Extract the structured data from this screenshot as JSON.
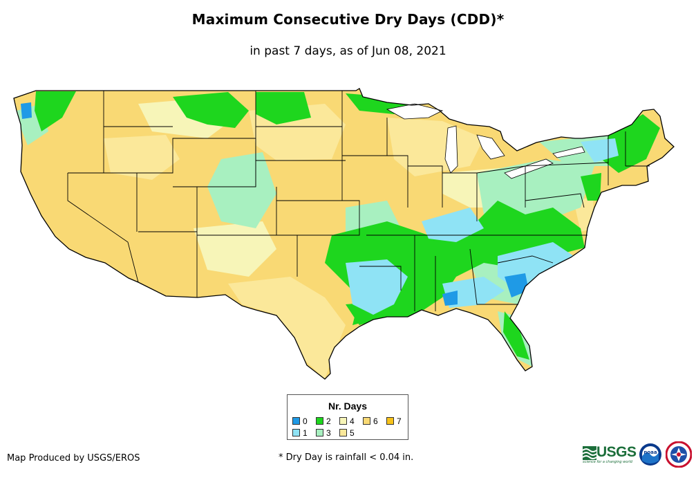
{
  "header": {
    "title": "Maximum Consecutive Dry Days (CDD)*",
    "subtitle": "in past 7 days, as of Jun 08, 2021"
  },
  "map": {
    "name": "Contiguous United States",
    "colors": {
      "d0": "#1f9ae6",
      "d1": "#8fe3f5",
      "d2": "#1ed61e",
      "d3": "#a8f0c0",
      "d4": "#f7f5b8",
      "d5": "#fbe89a",
      "d6": "#f9d974",
      "d7": "#f7c21a",
      "border": "#000000",
      "water": "#ffffff"
    }
  },
  "legend": {
    "title": "Nr. Days",
    "items": [
      {
        "label": "0",
        "color": "#1f9ae6"
      },
      {
        "label": "1",
        "color": "#8fe3f5"
      },
      {
        "label": "2",
        "color": "#1ed61e"
      },
      {
        "label": "3",
        "color": "#a8f0c0"
      },
      {
        "label": "4",
        "color": "#f7f5b8"
      },
      {
        "label": "5",
        "color": "#fbe89a"
      },
      {
        "label": "6",
        "color": "#f9d974"
      },
      {
        "label": "7",
        "color": "#f7c21a"
      }
    ]
  },
  "footer": {
    "credit": "Map Produced by USGS/EROS",
    "footnote": "* Dry Day is rainfall < 0.04 in."
  },
  "logos": {
    "usgs_text": "USGS",
    "usgs_tagline": "science for a changing world",
    "noaa_text": "noaa"
  }
}
